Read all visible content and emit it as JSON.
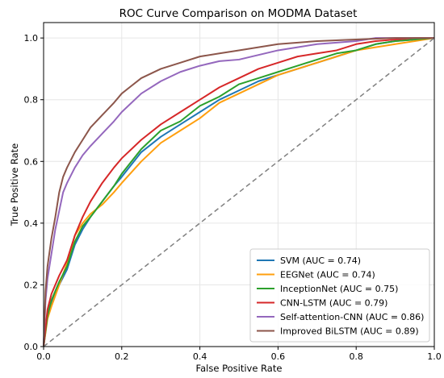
{
  "chart_data": {
    "type": "line",
    "title": "ROC Curve Comparison on MODMA Dataset",
    "xlabel": "False Positive Rate",
    "ylabel": "True Positive Rate",
    "xlim": [
      0.0,
      1.0
    ],
    "ylim": [
      0.0,
      1.05
    ],
    "xticks": [
      "0.0",
      "0.2",
      "0.4",
      "0.6",
      "0.8",
      "1.0"
    ],
    "yticks": [
      "0.0",
      "0.2",
      "0.4",
      "0.6",
      "0.8",
      "1.0"
    ],
    "grid": true,
    "legend_position": "lower-right",
    "series": [
      {
        "name": "SVM (AUC = 0.74)",
        "color": "#1f77b4",
        "x": [
          0.0,
          0.01,
          0.02,
          0.04,
          0.06,
          0.08,
          0.1,
          0.12,
          0.15,
          0.18,
          0.2,
          0.25,
          0.3,
          0.35,
          0.4,
          0.45,
          0.5,
          0.55,
          0.6,
          0.65,
          0.7,
          0.75,
          0.8,
          0.85,
          0.9,
          0.95,
          1.0
        ],
        "y": [
          0.0,
          0.1,
          0.14,
          0.2,
          0.25,
          0.33,
          0.38,
          0.42,
          0.47,
          0.52,
          0.55,
          0.63,
          0.68,
          0.72,
          0.76,
          0.8,
          0.83,
          0.86,
          0.88,
          0.9,
          0.92,
          0.94,
          0.96,
          0.98,
          0.99,
          0.995,
          1.0
        ]
      },
      {
        "name": "EEGNet (AUC = 0.74)",
        "color": "#ff9f0e",
        "x": [
          0.0,
          0.01,
          0.02,
          0.04,
          0.06,
          0.08,
          0.1,
          0.12,
          0.15,
          0.18,
          0.2,
          0.25,
          0.3,
          0.35,
          0.4,
          0.45,
          0.5,
          0.55,
          0.6,
          0.65,
          0.7,
          0.75,
          0.8,
          0.85,
          0.9,
          0.95,
          1.0
        ],
        "y": [
          0.0,
          0.09,
          0.13,
          0.2,
          0.27,
          0.36,
          0.4,
          0.43,
          0.46,
          0.5,
          0.53,
          0.6,
          0.66,
          0.7,
          0.74,
          0.79,
          0.82,
          0.85,
          0.88,
          0.9,
          0.92,
          0.94,
          0.96,
          0.97,
          0.98,
          0.99,
          1.0
        ]
      },
      {
        "name": "InceptionNet (AUC = 0.75)",
        "color": "#2ca02c",
        "x": [
          0.0,
          0.01,
          0.02,
          0.04,
          0.06,
          0.08,
          0.1,
          0.12,
          0.15,
          0.18,
          0.2,
          0.25,
          0.3,
          0.35,
          0.4,
          0.45,
          0.5,
          0.55,
          0.6,
          0.65,
          0.7,
          0.75,
          0.8,
          0.85,
          0.9,
          0.95,
          1.0
        ],
        "y": [
          0.0,
          0.1,
          0.15,
          0.21,
          0.26,
          0.34,
          0.39,
          0.42,
          0.47,
          0.52,
          0.56,
          0.64,
          0.7,
          0.73,
          0.78,
          0.81,
          0.85,
          0.87,
          0.89,
          0.91,
          0.93,
          0.95,
          0.96,
          0.98,
          0.99,
          0.995,
          1.0
        ]
      },
      {
        "name": "CNN-LSTM (AUC = 0.79)",
        "color": "#d62728",
        "x": [
          0.0,
          0.01,
          0.02,
          0.04,
          0.06,
          0.08,
          0.1,
          0.12,
          0.15,
          0.18,
          0.2,
          0.25,
          0.3,
          0.35,
          0.4,
          0.45,
          0.5,
          0.55,
          0.6,
          0.65,
          0.7,
          0.75,
          0.8,
          0.85,
          0.9,
          0.95,
          1.0
        ],
        "y": [
          0.0,
          0.12,
          0.17,
          0.23,
          0.28,
          0.36,
          0.42,
          0.47,
          0.53,
          0.58,
          0.61,
          0.67,
          0.72,
          0.76,
          0.8,
          0.84,
          0.87,
          0.9,
          0.92,
          0.94,
          0.95,
          0.96,
          0.98,
          0.99,
          0.995,
          1.0,
          1.0
        ]
      },
      {
        "name": "Self-attention-CNN (AUC = 0.86)",
        "color": "#9467bd",
        "x": [
          0.0,
          0.005,
          0.01,
          0.02,
          0.03,
          0.04,
          0.05,
          0.06,
          0.08,
          0.1,
          0.12,
          0.15,
          0.18,
          0.2,
          0.25,
          0.3,
          0.35,
          0.4,
          0.45,
          0.5,
          0.55,
          0.6,
          0.65,
          0.7,
          0.8,
          0.85,
          0.9,
          1.0
        ],
        "y": [
          0.0,
          0.15,
          0.22,
          0.3,
          0.38,
          0.44,
          0.5,
          0.53,
          0.58,
          0.62,
          0.65,
          0.69,
          0.73,
          0.76,
          0.82,
          0.86,
          0.89,
          0.91,
          0.925,
          0.93,
          0.945,
          0.96,
          0.97,
          0.98,
          0.99,
          1.0,
          1.0,
          1.0
        ]
      },
      {
        "name": "Improved BiLSTM (AUC = 0.89)",
        "color": "#8c564b",
        "x": [
          0.0,
          0.005,
          0.01,
          0.02,
          0.03,
          0.04,
          0.05,
          0.06,
          0.08,
          0.1,
          0.12,
          0.15,
          0.18,
          0.2,
          0.22,
          0.25,
          0.3,
          0.35,
          0.4,
          0.45,
          0.5,
          0.55,
          0.6,
          0.7,
          0.8,
          0.9,
          1.0
        ],
        "y": [
          0.0,
          0.18,
          0.26,
          0.35,
          0.42,
          0.5,
          0.55,
          0.58,
          0.63,
          0.67,
          0.71,
          0.75,
          0.79,
          0.82,
          0.84,
          0.87,
          0.9,
          0.92,
          0.94,
          0.95,
          0.96,
          0.97,
          0.98,
          0.99,
          0.995,
          1.0,
          1.0
        ]
      }
    ],
    "reference_line": {
      "x": [
        0,
        1
      ],
      "y": [
        0,
        1
      ],
      "color": "#808080",
      "style": "dashed"
    }
  }
}
